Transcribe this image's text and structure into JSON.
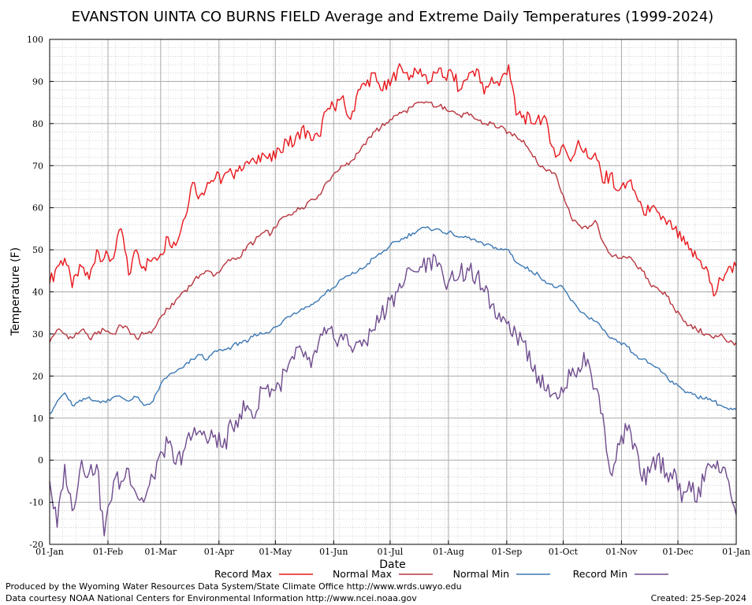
{
  "chart_data": {
    "type": "line",
    "title": "EVANSTON UINTA CO BURNS FIELD Average and Extreme Daily Temperatures (1999-2024)",
    "xlabel": "Date",
    "ylabel": "Temperature (F)",
    "ylim": [
      -20,
      100
    ],
    "yticks": [
      -20,
      -10,
      0,
      10,
      20,
      30,
      40,
      50,
      60,
      70,
      80,
      90,
      100
    ],
    "xlim": [
      0,
      365
    ],
    "xticks": [
      {
        "day": 0,
        "label": "01-Jan"
      },
      {
        "day": 31,
        "label": "01-Feb"
      },
      {
        "day": 59,
        "label": "01-Mar"
      },
      {
        "day": 90,
        "label": "01-Apr"
      },
      {
        "day": 120,
        "label": "01-May"
      },
      {
        "day": 151,
        "label": "01-Jun"
      },
      {
        "day": 181,
        "label": "01-Jul"
      },
      {
        "day": 212,
        "label": "01-Aug"
      },
      {
        "day": 243,
        "label": "01-Sep"
      },
      {
        "day": 273,
        "label": "01-Oct"
      },
      {
        "day": 304,
        "label": "01-Nov"
      },
      {
        "day": 334,
        "label": "01-Dec"
      },
      {
        "day": 365,
        "label": "01-Jan"
      }
    ],
    "grid": true,
    "legend_position": "bottom",
    "series": [
      {
        "name": "Record Max",
        "color": "#e8171c",
        "x_days": [
          0,
          4,
          8,
          12,
          17,
          21,
          25,
          29,
          34,
          38,
          42,
          46,
          50,
          55,
          59,
          63,
          67,
          71,
          76,
          80,
          84,
          88,
          92,
          97,
          101,
          105,
          109,
          113,
          118,
          122,
          126,
          130,
          134,
          139,
          143,
          147,
          151,
          155,
          160,
          164,
          168,
          172,
          176,
          181,
          185,
          189,
          193,
          197,
          202,
          206,
          210,
          214,
          218,
          223,
          227,
          231,
          235,
          239,
          244,
          248,
          252,
          256,
          260,
          265,
          269,
          273,
          277,
          281,
          286,
          290,
          294,
          298,
          302,
          307,
          311,
          315,
          319,
          323,
          328,
          332,
          336,
          340,
          344,
          349,
          353,
          357,
          361,
          365
        ],
        "values": [
          42,
          46,
          48,
          41,
          46,
          43,
          50,
          48,
          48,
          55,
          44,
          50,
          46,
          48,
          49,
          53,
          51,
          57,
          66,
          63,
          66,
          67,
          67,
          68,
          70,
          71,
          71,
          73,
          71,
          74,
          76,
          75,
          79,
          76,
          77,
          83,
          84,
          86,
          81,
          88,
          89,
          92,
          88,
          89,
          93,
          92,
          91,
          93,
          90,
          92,
          91,
          92,
          88,
          92,
          93,
          87,
          91,
          89,
          94,
          82,
          82,
          80,
          82,
          79,
          72,
          75,
          71,
          76,
          72,
          73,
          66,
          68,
          64,
          66,
          64,
          60,
          59,
          59,
          56,
          55,
          52,
          50,
          48,
          46,
          39,
          43,
          46,
          46
        ]
      },
      {
        "name": "Normal Max",
        "color": "#b8363f",
        "x_days": [
          0,
          4,
          8,
          12,
          17,
          21,
          25,
          29,
          34,
          38,
          42,
          46,
          50,
          55,
          59,
          63,
          67,
          71,
          76,
          80,
          84,
          88,
          92,
          97,
          101,
          105,
          109,
          113,
          118,
          122,
          126,
          130,
          134,
          139,
          143,
          147,
          151,
          155,
          160,
          164,
          168,
          172,
          176,
          181,
          185,
          189,
          193,
          197,
          202,
          206,
          210,
          214,
          218,
          223,
          227,
          231,
          235,
          239,
          244,
          248,
          252,
          256,
          260,
          265,
          269,
          273,
          277,
          281,
          286,
          290,
          294,
          298,
          302,
          307,
          311,
          315,
          319,
          323,
          328,
          332,
          336,
          340,
          344,
          349,
          353,
          357,
          361,
          365
        ],
        "values": [
          28,
          31,
          30,
          29,
          31,
          29,
          30,
          31,
          30,
          32,
          31,
          29,
          30,
          31,
          34,
          36,
          38,
          40,
          42,
          44,
          45,
          44,
          46,
          48,
          48,
          51,
          52,
          54,
          54,
          57,
          58,
          59,
          60,
          62,
          63,
          66,
          68,
          70,
          71,
          73,
          75,
          78,
          79,
          81,
          82,
          83,
          84,
          85,
          85,
          84,
          84,
          83,
          82,
          82,
          81,
          80,
          80,
          79,
          78,
          77,
          76,
          73,
          70,
          69,
          68,
          63,
          58,
          56,
          55,
          57,
          52,
          49,
          48,
          48,
          47,
          45,
          42,
          41,
          39,
          36,
          34,
          32,
          31,
          30,
          29,
          30,
          28,
          28
        ]
      },
      {
        "name": "Normal Min",
        "color": "#3d79b4",
        "x_days": [
          0,
          4,
          8,
          12,
          17,
          21,
          25,
          29,
          34,
          38,
          42,
          46,
          50,
          55,
          59,
          63,
          67,
          71,
          76,
          80,
          84,
          88,
          92,
          97,
          101,
          105,
          109,
          113,
          118,
          122,
          126,
          130,
          134,
          139,
          143,
          147,
          151,
          155,
          160,
          164,
          168,
          172,
          176,
          181,
          185,
          189,
          193,
          197,
          202,
          206,
          210,
          214,
          218,
          223,
          227,
          231,
          235,
          239,
          244,
          248,
          252,
          256,
          260,
          265,
          269,
          273,
          277,
          281,
          286,
          290,
          294,
          298,
          302,
          307,
          311,
          315,
          319,
          323,
          328,
          332,
          336,
          340,
          344,
          349,
          353,
          357,
          361,
          365
        ],
        "values": [
          11,
          14,
          16,
          13,
          14,
          15,
          14,
          14,
          15,
          15,
          14,
          15,
          13,
          14,
          18,
          20,
          21,
          22,
          24,
          25,
          24,
          26,
          26,
          27,
          28,
          28,
          30,
          30,
          31,
          32,
          34,
          35,
          36,
          37,
          38,
          40,
          41,
          43,
          44,
          45,
          46,
          48,
          49,
          51,
          52,
          53,
          54,
          55,
          55,
          55,
          54,
          54,
          53,
          53,
          52,
          51,
          51,
          50,
          50,
          47,
          46,
          45,
          44,
          42,
          41,
          41,
          38,
          36,
          34,
          33,
          31,
          29,
          28,
          27,
          25,
          24,
          23,
          22,
          20,
          18,
          17,
          16,
          15,
          15,
          14,
          13,
          12,
          12
        ]
      },
      {
        "name": "Record Min",
        "color": "#6f4c8e",
        "x_days": [
          0,
          4,
          8,
          12,
          17,
          21,
          25,
          29,
          34,
          38,
          42,
          46,
          50,
          55,
          59,
          63,
          67,
          71,
          76,
          80,
          84,
          88,
          92,
          97,
          101,
          105,
          109,
          113,
          118,
          122,
          126,
          130,
          134,
          139,
          143,
          147,
          151,
          155,
          160,
          164,
          168,
          172,
          176,
          181,
          185,
          189,
          193,
          197,
          202,
          206,
          210,
          214,
          218,
          223,
          227,
          231,
          235,
          239,
          244,
          248,
          252,
          256,
          260,
          265,
          269,
          273,
          277,
          281,
          286,
          290,
          294,
          298,
          302,
          307,
          311,
          315,
          319,
          323,
          328,
          332,
          336,
          340,
          344,
          349,
          353,
          357,
          361,
          365
        ],
        "values": [
          -5,
          -16,
          -1,
          -12,
          0,
          -3,
          -1,
          -18,
          -5,
          -5,
          -2,
          -8,
          -10,
          -4,
          2,
          4,
          -1,
          2,
          6,
          7,
          4,
          6,
          3,
          8,
          11,
          13,
          10,
          17,
          17,
          18,
          21,
          24,
          26,
          22,
          28,
          30,
          29,
          30,
          27,
          28,
          28,
          31,
          34,
          38,
          40,
          43,
          45,
          46,
          48,
          46,
          42,
          45,
          44,
          45,
          44,
          40,
          37,
          35,
          33,
          30,
          28,
          22,
          20,
          18,
          16,
          16,
          20,
          22,
          24,
          17,
          11,
          -3,
          4,
          7,
          4,
          -5,
          -3,
          1,
          -3,
          -2,
          -10,
          -5,
          -10,
          -2,
          -1,
          -3,
          -5,
          -13
        ]
      }
    ]
  },
  "footer": {
    "line1": "Produced by the Wyoming Water Resources Data System/State Climate Office http://www.wrds.uwyo.edu",
    "line2": "Data courtesy NOAA National Centers for Environmental Information http://www.ncei.noaa.gov",
    "created": "Created:  25-Sep-2024"
  }
}
